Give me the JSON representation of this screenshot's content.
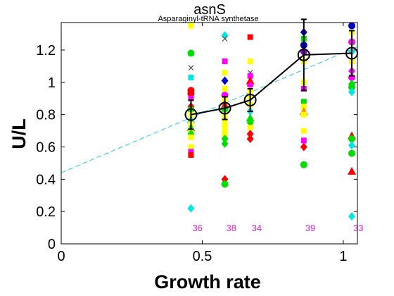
{
  "chart_data": {
    "type": "scatter",
    "title": "asnS",
    "subtitle": "Asparaginyl-tRNA synthetase",
    "xlabel": "Growth rate",
    "ylabel": "U/L",
    "xlim": [
      0,
      1.05
    ],
    "ylim": [
      0,
      1.37
    ],
    "xticks": [
      0,
      0.5,
      1
    ],
    "xtick_labels": [
      "0",
      "0.5",
      "1"
    ],
    "yticks": [
      0,
      0.2,
      0.4,
      0.6,
      0.8,
      1,
      1.2
    ],
    "ytick_labels": [
      "0",
      "0.2",
      "0.4",
      "0.6",
      "0.8",
      "1",
      "1.2"
    ],
    "grid": false,
    "legend": "none",
    "fit_line": {
      "color": "#22c8e0",
      "points": [
        [
          0,
          0.44
        ],
        [
          1.05,
          1.22
        ]
      ]
    },
    "mean_line": {
      "color": "#000000",
      "x": [
        0.46,
        0.58,
        0.67,
        0.86,
        1.03
      ],
      "y": [
        0.8,
        0.84,
        0.89,
        1.17,
        1.18
      ],
      "err": [
        0.09,
        0.07,
        0.07,
        0.22,
        0.14
      ]
    },
    "count_labels": {
      "color": "#e020e0",
      "y": 0.1,
      "x": [
        0.46,
        0.58,
        0.67,
        0.86,
        1.03
      ],
      "labels": [
        "36",
        "38",
        "34",
        "39",
        "33"
      ]
    },
    "points": [
      {
        "x": 0.46,
        "y": 1.35,
        "c": "#ffff00",
        "m": "square"
      },
      {
        "x": 0.46,
        "y": 1.18,
        "c": "#00dd00",
        "m": "circle"
      },
      {
        "x": 0.46,
        "y": 1.09,
        "c": "#555555",
        "m": "x"
      },
      {
        "x": 0.46,
        "y": 1.03,
        "c": "#00e5e5",
        "m": "square"
      },
      {
        "x": 0.46,
        "y": 0.95,
        "c": "#ff0000",
        "m": "circle"
      },
      {
        "x": 0.46,
        "y": 0.93,
        "c": "#ff0000",
        "m": "circle"
      },
      {
        "x": 0.46,
        "y": 0.9,
        "c": "#ff00ff",
        "m": "square"
      },
      {
        "x": 0.46,
        "y": 0.85,
        "c": "#ff0000",
        "m": "diamond"
      },
      {
        "x": 0.46,
        "y": 0.83,
        "c": "#00dd00",
        "m": "circle"
      },
      {
        "x": 0.46,
        "y": 0.8,
        "c": "#ffff00",
        "m": "square"
      },
      {
        "x": 0.46,
        "y": 0.77,
        "c": "#00e5e5",
        "m": "triangle"
      },
      {
        "x": 0.46,
        "y": 0.74,
        "c": "#ffff00",
        "m": "square"
      },
      {
        "x": 0.46,
        "y": 0.72,
        "c": "#00dd00",
        "m": "triangle"
      },
      {
        "x": 0.46,
        "y": 0.7,
        "c": "#ffff00",
        "m": "square"
      },
      {
        "x": 0.46,
        "y": 0.68,
        "c": "#00dd00",
        "m": "diamond"
      },
      {
        "x": 0.46,
        "y": 0.66,
        "c": "#ffff00",
        "m": "square"
      },
      {
        "x": 0.46,
        "y": 0.6,
        "c": "#ffff00",
        "m": "square"
      },
      {
        "x": 0.46,
        "y": 0.57,
        "c": "#ff00ff",
        "m": "square"
      },
      {
        "x": 0.46,
        "y": 0.55,
        "c": "#ff0000",
        "m": "square"
      },
      {
        "x": 0.46,
        "y": 0.22,
        "c": "#00e5e5",
        "m": "diamond"
      },
      {
        "x": 0.58,
        "y": 1.29,
        "c": "#00e5e5",
        "m": "diamond"
      },
      {
        "x": 0.58,
        "y": 1.27,
        "c": "#555555",
        "m": "x"
      },
      {
        "x": 0.58,
        "y": 1.13,
        "c": "#ff00ff",
        "m": "square"
      },
      {
        "x": 0.58,
        "y": 1.06,
        "c": "#ffff00",
        "m": "square"
      },
      {
        "x": 0.58,
        "y": 1.01,
        "c": "#0000cc",
        "m": "diamond"
      },
      {
        "x": 0.58,
        "y": 0.96,
        "c": "#ffff00",
        "m": "square"
      },
      {
        "x": 0.58,
        "y": 0.92,
        "c": "#ff00ff",
        "m": "circle"
      },
      {
        "x": 0.58,
        "y": 0.89,
        "c": "#ffff00",
        "m": "square"
      },
      {
        "x": 0.58,
        "y": 0.86,
        "c": "#ff0000",
        "m": "triangle"
      },
      {
        "x": 0.58,
        "y": 0.83,
        "c": "#00dd00",
        "m": "circle"
      },
      {
        "x": 0.58,
        "y": 0.8,
        "c": "#ffff00",
        "m": "square"
      },
      {
        "x": 0.58,
        "y": 0.77,
        "c": "#ffff00",
        "m": "diamond"
      },
      {
        "x": 0.58,
        "y": 0.74,
        "c": "#ffff00",
        "m": "square"
      },
      {
        "x": 0.58,
        "y": 0.71,
        "c": "#ffff00",
        "m": "square"
      },
      {
        "x": 0.58,
        "y": 0.68,
        "c": "#ffff00",
        "m": "square"
      },
      {
        "x": 0.58,
        "y": 0.65,
        "c": "#00dd00",
        "m": "diamond"
      },
      {
        "x": 0.58,
        "y": 0.62,
        "c": "#00dd00",
        "m": "diamond"
      },
      {
        "x": 0.58,
        "y": 0.4,
        "c": "#ff0000",
        "m": "diamond"
      },
      {
        "x": 0.58,
        "y": 0.37,
        "c": "#00dd00",
        "m": "circle"
      },
      {
        "x": 0.67,
        "y": 1.28,
        "c": "#ff0000",
        "m": "square"
      },
      {
        "x": 0.67,
        "y": 1.13,
        "c": "#ffff00",
        "m": "square"
      },
      {
        "x": 0.67,
        "y": 1.06,
        "c": "#555555",
        "m": "x"
      },
      {
        "x": 0.67,
        "y": 1.04,
        "c": "#ff00ff",
        "m": "square"
      },
      {
        "x": 0.67,
        "y": 1.01,
        "c": "#ff0000",
        "m": "triangle"
      },
      {
        "x": 0.67,
        "y": 0.98,
        "c": "#ff00ff",
        "m": "diamond"
      },
      {
        "x": 0.67,
        "y": 0.95,
        "c": "#ffff00",
        "m": "square"
      },
      {
        "x": 0.67,
        "y": 0.91,
        "c": "#ffff00",
        "m": "square"
      },
      {
        "x": 0.67,
        "y": 0.86,
        "c": "#ffff00",
        "m": "square"
      },
      {
        "x": 0.67,
        "y": 0.82,
        "c": "#00e5e5",
        "m": "diamond"
      },
      {
        "x": 0.67,
        "y": 0.78,
        "c": "#00dd00",
        "m": "triangle"
      },
      {
        "x": 0.67,
        "y": 0.75,
        "c": "#00dd00",
        "m": "diamond"
      },
      {
        "x": 0.67,
        "y": 0.72,
        "c": "#ffff00",
        "m": "square"
      },
      {
        "x": 0.67,
        "y": 0.68,
        "c": "#ff0000",
        "m": "diamond"
      },
      {
        "x": 0.67,
        "y": 0.65,
        "c": "#ff0000",
        "m": "diamond"
      },
      {
        "x": 0.86,
        "y": 1.31,
        "c": "#0000cc",
        "m": "diamond"
      },
      {
        "x": 0.86,
        "y": 1.27,
        "c": "#00dd00",
        "m": "square"
      },
      {
        "x": 0.86,
        "y": 1.23,
        "c": "#0000cc",
        "m": "circle"
      },
      {
        "x": 0.86,
        "y": 1.19,
        "c": "#8800cc",
        "m": "circle"
      },
      {
        "x": 0.86,
        "y": 1.13,
        "c": "#ffff00",
        "m": "square"
      },
      {
        "x": 0.86,
        "y": 1.0,
        "c": "#ffff00",
        "m": "square"
      },
      {
        "x": 0.86,
        "y": 0.96,
        "c": "#ff00ff",
        "m": "square"
      },
      {
        "x": 0.86,
        "y": 0.88,
        "c": "#00dd00",
        "m": "square"
      },
      {
        "x": 0.86,
        "y": 0.85,
        "c": "#ffff00",
        "m": "square"
      },
      {
        "x": 0.86,
        "y": 0.82,
        "c": "#ff8800",
        "m": "triangle"
      },
      {
        "x": 0.86,
        "y": 0.8,
        "c": "#ffff00",
        "m": "square"
      },
      {
        "x": 0.86,
        "y": 0.7,
        "c": "#ffff00",
        "m": "square"
      },
      {
        "x": 0.86,
        "y": 0.64,
        "c": "#ff00ff",
        "m": "square"
      },
      {
        "x": 0.86,
        "y": 0.6,
        "c": "#ff0000",
        "m": "diamond"
      },
      {
        "x": 0.86,
        "y": 0.49,
        "c": "#00dd00",
        "m": "circle"
      },
      {
        "x": 1.03,
        "y": 1.35,
        "c": "#0000cc",
        "m": "circle"
      },
      {
        "x": 1.03,
        "y": 1.31,
        "c": "#ffff00",
        "m": "square"
      },
      {
        "x": 1.03,
        "y": 1.25,
        "c": "#ff00ff",
        "m": "circle"
      },
      {
        "x": 1.03,
        "y": 1.19,
        "c": "#00e5e5",
        "m": "diamond"
      },
      {
        "x": 1.03,
        "y": 1.13,
        "c": "#ffff00",
        "m": "square"
      },
      {
        "x": 1.03,
        "y": 1.07,
        "c": "#ff00ff",
        "m": "diamond"
      },
      {
        "x": 1.03,
        "y": 1.03,
        "c": "#ff00ff",
        "m": "circle"
      },
      {
        "x": 1.03,
        "y": 0.99,
        "c": "#00dd00",
        "m": "diamond"
      },
      {
        "x": 1.03,
        "y": 0.97,
        "c": "#00dd00",
        "m": "circle"
      },
      {
        "x": 1.03,
        "y": 0.94,
        "c": "#00e5e5",
        "m": "diamond"
      },
      {
        "x": 1.03,
        "y": 0.67,
        "c": "#ff0000",
        "m": "triangle"
      },
      {
        "x": 1.03,
        "y": 0.65,
        "c": "#00dd00",
        "m": "circle"
      },
      {
        "x": 1.03,
        "y": 0.61,
        "c": "#00e5e5",
        "m": "diamond"
      },
      {
        "x": 1.03,
        "y": 0.56,
        "c": "#00dd00",
        "m": "circle"
      },
      {
        "x": 1.03,
        "y": 0.45,
        "c": "#ff0000",
        "m": "triangle"
      },
      {
        "x": 1.03,
        "y": 0.17,
        "c": "#00e5e5",
        "m": "diamond"
      }
    ]
  }
}
